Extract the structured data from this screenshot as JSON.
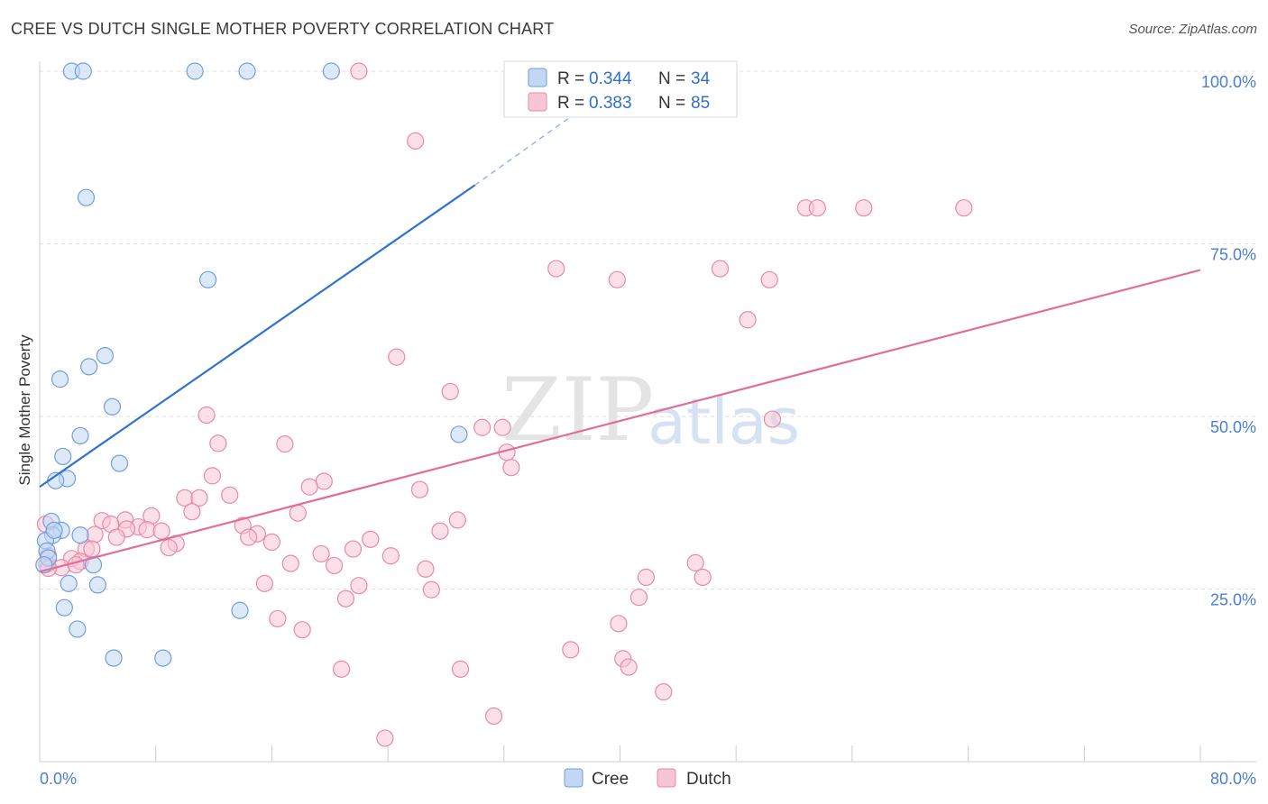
{
  "header": {
    "title": "CREE VS DUTCH SINGLE MOTHER POVERTY CORRELATION CHART",
    "source": "Source: ZipAtlas.com"
  },
  "watermark": {
    "zip": "ZIP",
    "atlas": "atlas"
  },
  "legend": {
    "rows": [
      {
        "r_label": "R =",
        "r_value": "0.344",
        "n_label": "N =",
        "n_value": "34"
      },
      {
        "r_label": "R =",
        "r_value": "0.383",
        "n_label": "N =",
        "n_value": "85"
      }
    ]
  },
  "bottom_legend": {
    "cree": "Cree",
    "dutch": "Dutch"
  },
  "chart_data": {
    "type": "scatter",
    "title": "CREE VS DUTCH SINGLE MOTHER POVERTY CORRELATION CHART",
    "xlabel": "",
    "ylabel": "Single Mother Poverty",
    "xlim": [
      0,
      80
    ],
    "ylim": [
      0,
      100
    ],
    "x_ticks": [
      "0.0%",
      "80.0%"
    ],
    "y_ticks": [
      {
        "value": 100,
        "label": "100.0%"
      },
      {
        "value": 75,
        "label": "75.0%"
      },
      {
        "value": 50,
        "label": "50.0%"
      },
      {
        "value": 25,
        "label": "25.0%"
      }
    ],
    "grid": "horizontal dashed",
    "legend_position": "top-center",
    "series": [
      {
        "name": "Cree",
        "color": "#6f9fdf",
        "fill": "#c3d7f3",
        "trend": {
          "x0": 0,
          "y0": 39.8,
          "x1": 30,
          "y1": 83.5,
          "dash_to_x": 37,
          "dash_to_y": 94
        },
        "points": [
          [
            2.2,
            100
          ],
          [
            3.0,
            100
          ],
          [
            10.7,
            100
          ],
          [
            14.3,
            100
          ],
          [
            20.1,
            100
          ],
          [
            3.2,
            81.7
          ],
          [
            11.6,
            69.8
          ],
          [
            4.5,
            58.8
          ],
          [
            3.4,
            57.2
          ],
          [
            1.4,
            55.4
          ],
          [
            5.0,
            51.4
          ],
          [
            2.8,
            47.2
          ],
          [
            28.9,
            47.4
          ],
          [
            1.6,
            44.2
          ],
          [
            5.5,
            43.2
          ],
          [
            1.9,
            41.0
          ],
          [
            1.1,
            40.7
          ],
          [
            0.8,
            34.8
          ],
          [
            1.5,
            33.5
          ],
          [
            0.9,
            32.8
          ],
          [
            2.8,
            32.8
          ],
          [
            0.4,
            32.0
          ],
          [
            0.5,
            30.5
          ],
          [
            0.6,
            29.5
          ],
          [
            0.3,
            28.5
          ],
          [
            3.7,
            28.5
          ],
          [
            2.0,
            25.8
          ],
          [
            4.0,
            25.6
          ],
          [
            1.7,
            22.3
          ],
          [
            13.8,
            21.9
          ],
          [
            2.6,
            19.2
          ],
          [
            5.1,
            15.0
          ],
          [
            8.5,
            15.0
          ],
          [
            1.0,
            33.5
          ]
        ]
      },
      {
        "name": "Dutch",
        "color": "#e889a8",
        "fill": "#f7c6d6",
        "trend": {
          "x0": 0,
          "y0": 27.5,
          "x1": 80,
          "y1": 71.2
        },
        "points": [
          [
            22.0,
            100
          ],
          [
            34.0,
            100
          ],
          [
            25.9,
            89.9
          ],
          [
            52.8,
            80.2
          ],
          [
            53.6,
            80.2
          ],
          [
            56.8,
            80.2
          ],
          [
            63.7,
            80.2
          ],
          [
            35.6,
            71.4
          ],
          [
            39.8,
            69.8
          ],
          [
            46.9,
            71.4
          ],
          [
            50.3,
            69.8
          ],
          [
            48.8,
            64.0
          ],
          [
            24.6,
            58.6
          ],
          [
            28.3,
            53.6
          ],
          [
            11.5,
            50.2
          ],
          [
            50.5,
            49.6
          ],
          [
            30.5,
            48.4
          ],
          [
            31.9,
            48.4
          ],
          [
            12.3,
            46.1
          ],
          [
            16.9,
            46.0
          ],
          [
            32.2,
            44.8
          ],
          [
            11.9,
            41.4
          ],
          [
            32.5,
            42.6
          ],
          [
            19.6,
            40.6
          ],
          [
            18.6,
            39.8
          ],
          [
            26.2,
            39.4
          ],
          [
            10.0,
            38.2
          ],
          [
            11.0,
            38.2
          ],
          [
            13.1,
            38.6
          ],
          [
            10.5,
            36.2
          ],
          [
            17.8,
            36.0
          ],
          [
            7.7,
            35.6
          ],
          [
            5.9,
            35.0
          ],
          [
            4.3,
            34.9
          ],
          [
            28.8,
            35.0
          ],
          [
            6.8,
            34.0
          ],
          [
            4.9,
            34.4
          ],
          [
            14.0,
            34.2
          ],
          [
            7.4,
            33.6
          ],
          [
            8.4,
            33.4
          ],
          [
            6.0,
            33.7
          ],
          [
            27.6,
            33.4
          ],
          [
            15.0,
            33.0
          ],
          [
            3.8,
            32.9
          ],
          [
            14.4,
            32.5
          ],
          [
            5.3,
            32.5
          ],
          [
            22.8,
            32.2
          ],
          [
            9.4,
            31.6
          ],
          [
            16.0,
            31.8
          ],
          [
            8.9,
            31.0
          ],
          [
            3.2,
            30.8
          ],
          [
            3.6,
            30.8
          ],
          [
            21.6,
            30.8
          ],
          [
            19.4,
            30.1
          ],
          [
            24.2,
            29.8
          ],
          [
            2.2,
            29.4
          ],
          [
            0.6,
            29.8
          ],
          [
            0.5,
            28.6
          ],
          [
            0.4,
            34.4
          ],
          [
            1.5,
            28.1
          ],
          [
            2.8,
            29.0
          ],
          [
            17.3,
            28.7
          ],
          [
            20.3,
            28.4
          ],
          [
            45.2,
            28.8
          ],
          [
            26.6,
            27.9
          ],
          [
            41.8,
            26.7
          ],
          [
            45.7,
            26.7
          ],
          [
            15.5,
            25.8
          ],
          [
            22.0,
            25.5
          ],
          [
            27.0,
            24.9
          ],
          [
            21.1,
            23.6
          ],
          [
            41.3,
            23.8
          ],
          [
            16.4,
            20.7
          ],
          [
            39.9,
            20.0
          ],
          [
            18.1,
            19.1
          ],
          [
            36.6,
            16.2
          ],
          [
            40.2,
            14.9
          ],
          [
            40.6,
            13.7
          ],
          [
            20.8,
            13.4
          ],
          [
            29.0,
            13.4
          ],
          [
            43.0,
            10.1
          ],
          [
            31.3,
            6.6
          ],
          [
            23.8,
            3.4
          ],
          [
            0.6,
            28.0
          ],
          [
            2.5,
            28.5
          ]
        ]
      }
    ]
  }
}
